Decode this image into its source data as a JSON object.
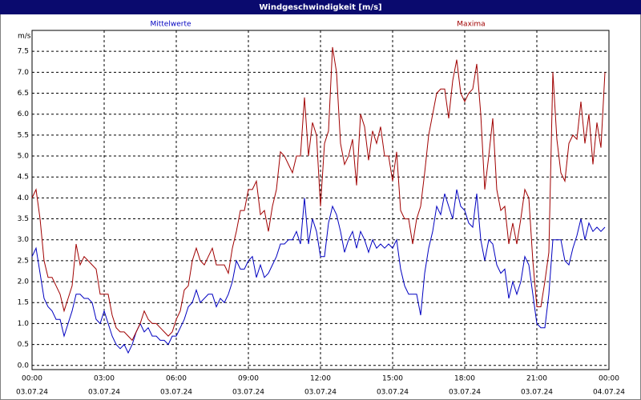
{
  "chart_data": {
    "type": "line",
    "title": "Windgeschwindigkeit [m/s]",
    "y_unit": "m/s",
    "x": [
      0,
      10,
      20,
      30,
      40,
      50,
      60,
      70,
      80,
      90,
      100,
      110,
      120,
      130,
      140,
      150,
      160,
      170,
      180,
      190,
      200,
      210,
      220,
      230,
      240,
      250,
      260,
      270,
      280,
      290,
      300,
      310,
      320,
      330,
      340,
      350,
      360,
      370,
      380,
      390,
      400,
      410,
      420,
      430,
      440,
      450,
      460,
      470,
      480,
      490,
      500,
      510,
      520,
      530,
      540,
      550,
      560,
      570,
      580,
      590,
      600,
      610,
      620,
      630,
      640,
      650,
      660,
      670,
      680,
      690,
      700,
      710,
      720,
      730,
      740,
      750,
      760,
      770,
      780,
      790,
      800,
      810,
      820,
      830,
      840,
      850,
      860,
      870,
      880,
      890,
      900,
      910,
      920,
      930,
      940,
      950,
      960,
      970,
      980,
      990,
      1000,
      1010,
      1020,
      1030,
      1040,
      1050,
      1060,
      1070,
      1080,
      1090,
      1100,
      1110,
      1120,
      1130,
      1140,
      1150,
      1160,
      1170,
      1180,
      1190,
      1200,
      1210,
      1220,
      1230,
      1240,
      1250,
      1260,
      1270,
      1280,
      1290,
      1300,
      1310,
      1320,
      1330,
      1340,
      1350,
      1360,
      1370,
      1380,
      1390,
      1400,
      1410,
      1420,
      1430
    ],
    "series": [
      {
        "name": "Mittelwerte",
        "color": "#0000c0",
        "values": [
          2.6,
          2.8,
          2.2,
          1.6,
          1.4,
          1.3,
          1.1,
          1.1,
          0.7,
          1.0,
          1.3,
          1.7,
          1.7,
          1.6,
          1.6,
          1.5,
          1.1,
          1.0,
          1.3,
          1.0,
          0.7,
          0.5,
          0.4,
          0.5,
          0.3,
          0.5,
          0.8,
          1.0,
          0.8,
          0.9,
          0.7,
          0.7,
          0.6,
          0.6,
          0.5,
          0.7,
          0.7,
          0.9,
          1.1,
          1.4,
          1.5,
          1.8,
          1.5,
          1.6,
          1.7,
          1.7,
          1.4,
          1.6,
          1.5,
          1.7,
          2.0,
          2.5,
          2.3,
          2.3,
          2.5,
          2.6,
          2.1,
          2.4,
          2.1,
          2.2,
          2.4,
          2.6,
          2.9,
          2.9,
          3.0,
          3.0,
          3.2,
          2.9,
          4.0,
          2.9,
          3.5,
          3.2,
          2.6,
          2.6,
          3.4,
          3.8,
          3.6,
          3.2,
          2.7,
          3.0,
          3.2,
          2.8,
          3.2,
          3.0,
          2.7,
          3.0,
          2.8,
          2.9,
          2.8,
          2.9,
          2.8,
          3.0,
          2.3,
          1.9,
          1.7,
          1.7,
          1.7,
          1.2,
          2.2,
          2.8,
          3.2,
          3.8,
          3.6,
          4.1,
          3.8,
          3.5,
          4.2,
          3.8,
          3.7,
          3.4,
          3.3,
          4.1,
          3.0,
          2.5,
          3.0,
          2.9,
          2.4,
          2.2,
          2.3,
          1.6,
          2.0,
          1.7,
          2.0,
          2.6,
          2.4,
          1.7,
          1.0,
          0.9,
          0.9,
          1.7,
          3.0,
          3.0,
          3.0,
          2.5,
          2.4,
          2.8,
          3.1,
          3.5,
          3.0,
          3.4,
          3.2,
          3.3,
          3.2,
          3.3
        ]
      },
      {
        "name": "Maxima",
        "color": "#a00000",
        "values": [
          4.0,
          4.2,
          3.5,
          2.5,
          2.1,
          2.1,
          1.9,
          1.7,
          1.3,
          1.6,
          1.9,
          2.9,
          2.4,
          2.6,
          2.5,
          2.4,
          2.3,
          1.7,
          1.7,
          1.7,
          1.2,
          0.9,
          0.8,
          0.8,
          0.7,
          0.6,
          0.8,
          1.0,
          1.3,
          1.1,
          1.0,
          1.0,
          0.9,
          0.8,
          0.7,
          0.8,
          1.1,
          1.3,
          1.8,
          1.9,
          2.5,
          2.8,
          2.5,
          2.4,
          2.6,
          2.8,
          2.4,
          2.4,
          2.4,
          2.2,
          2.8,
          3.2,
          3.7,
          3.7,
          4.2,
          4.2,
          4.4,
          3.6,
          3.7,
          3.2,
          3.8,
          4.2,
          5.1,
          5.0,
          4.8,
          4.6,
          5.0,
          5.0,
          6.4,
          5.0,
          5.8,
          5.5,
          3.8,
          5.3,
          5.6,
          7.6,
          7.0,
          5.3,
          4.8,
          5.0,
          5.4,
          4.3,
          6.0,
          5.7,
          4.9,
          5.6,
          5.3,
          5.7,
          5.0,
          5.0,
          4.4,
          5.1,
          3.7,
          3.5,
          3.5,
          2.9,
          3.5,
          3.8,
          4.6,
          5.5,
          6.0,
          6.5,
          6.6,
          6.6,
          5.9,
          6.8,
          7.3,
          6.5,
          6.3,
          6.5,
          6.6,
          7.2,
          6.0,
          4.2,
          5.0,
          5.9,
          4.2,
          3.7,
          3.8,
          2.9,
          3.4,
          2.9,
          3.5,
          4.2,
          4.0,
          2.5,
          1.4,
          1.4,
          2.0,
          2.7,
          7.0,
          5.4,
          4.6,
          4.4,
          5.3,
          5.5,
          5.4,
          6.3,
          5.3,
          6.0,
          4.8,
          5.8,
          5.2,
          7.0
        ]
      }
    ],
    "xlim": [
      0,
      1440
    ],
    "xticks": [
      {
        "value": 0,
        "label": "00:00"
      },
      {
        "value": 180,
        "label": "03:00"
      },
      {
        "value": 360,
        "label": "06:00"
      },
      {
        "value": 540,
        "label": "09:00"
      },
      {
        "value": 720,
        "label": "12:00"
      },
      {
        "value": 900,
        "label": "15:00"
      },
      {
        "value": 1080,
        "label": "18:00"
      },
      {
        "value": 1260,
        "label": "21:00"
      },
      {
        "value": 1440,
        "label": "00:00"
      }
    ],
    "xtick_dates": [
      "03.07.24",
      "03.07.24",
      "03.07.24",
      "03.07.24",
      "03.07.24",
      "03.07.24",
      "03.07.24",
      "03.07.24",
      "04.07.24"
    ],
    "ylim": [
      -0.1,
      8.0
    ],
    "yticks": [
      {
        "value": 0,
        "label": "0.0"
      },
      0.5,
      {
        "value": 1,
        "label": "1.0"
      },
      1.5,
      {
        "value": 2,
        "label": "2.0"
      },
      2.5,
      {
        "value": 3,
        "label": "3.0"
      },
      3.5,
      {
        "value": 4,
        "label": "4.0"
      },
      4.5,
      {
        "value": 5,
        "label": "5.0"
      },
      5.5,
      {
        "value": 6,
        "label": "6.0"
      },
      6.5,
      {
        "value": 7,
        "label": "7.0"
      },
      7.5
    ],
    "grid": true
  }
}
